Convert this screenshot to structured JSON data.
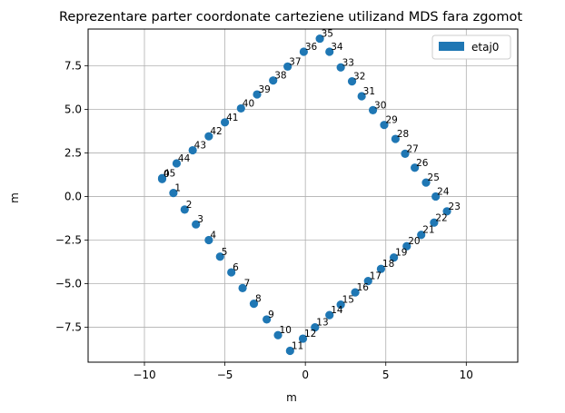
{
  "chart_data": {
    "type": "scatter",
    "title": "Reprezentare parter coordonate carteziene utilizand MDS fara zgomot",
    "xlabel": "m",
    "ylabel": "m",
    "xlim": [
      -13.5,
      13.2
    ],
    "ylim": [
      -9.5,
      9.6
    ],
    "xticks": [
      -10,
      -5,
      0,
      5,
      10
    ],
    "xtick_labels": [
      "−10",
      "−5",
      "0",
      "5",
      "10"
    ],
    "yticks": [
      -7.5,
      -5.0,
      -2.5,
      0.0,
      2.5,
      5.0,
      7.5
    ],
    "ytick_labels": [
      "−7.5",
      "−5.0",
      "−2.5",
      "0.0",
      "2.5",
      "5.0",
      "7.5"
    ],
    "grid": true,
    "legend": {
      "placement": "top-right",
      "entries": [
        "etaj0"
      ]
    },
    "series": [
      {
        "name": "etaj0",
        "color": "#1f77b4",
        "points": [
          {
            "x": -8.9,
            "y": 1.0,
            "label": "0"
          },
          {
            "x": -8.2,
            "y": 0.2,
            "label": "1"
          },
          {
            "x": -7.5,
            "y": -0.75,
            "label": "2"
          },
          {
            "x": -6.8,
            "y": -1.6,
            "label": "3"
          },
          {
            "x": -6.0,
            "y": -2.5,
            "label": "4"
          },
          {
            "x": -5.3,
            "y": -3.45,
            "label": "5"
          },
          {
            "x": -4.6,
            "y": -4.35,
            "label": "6"
          },
          {
            "x": -3.9,
            "y": -5.25,
            "label": "7"
          },
          {
            "x": -3.2,
            "y": -6.15,
            "label": "8"
          },
          {
            "x": -2.4,
            "y": -7.05,
            "label": "9"
          },
          {
            "x": -1.7,
            "y": -7.95,
            "label": "10"
          },
          {
            "x": -0.95,
            "y": -8.85,
            "label": "11"
          },
          {
            "x": -0.15,
            "y": -8.15,
            "label": "12"
          },
          {
            "x": 0.6,
            "y": -7.5,
            "label": "13"
          },
          {
            "x": 1.5,
            "y": -6.8,
            "label": "14"
          },
          {
            "x": 2.2,
            "y": -6.2,
            "label": "15"
          },
          {
            "x": 3.1,
            "y": -5.5,
            "label": "16"
          },
          {
            "x": 3.9,
            "y": -4.85,
            "label": "17"
          },
          {
            "x": 4.7,
            "y": -4.15,
            "label": "18"
          },
          {
            "x": 5.5,
            "y": -3.5,
            "label": "19"
          },
          {
            "x": 6.3,
            "y": -2.85,
            "label": "20"
          },
          {
            "x": 7.2,
            "y": -2.2,
            "label": "21"
          },
          {
            "x": 8.0,
            "y": -1.5,
            "label": "22"
          },
          {
            "x": 8.8,
            "y": -0.85,
            "label": "23"
          },
          {
            "x": 8.1,
            "y": 0.0,
            "label": "24"
          },
          {
            "x": 7.5,
            "y": 0.8,
            "label": "25"
          },
          {
            "x": 6.8,
            "y": 1.65,
            "label": "26"
          },
          {
            "x": 6.2,
            "y": 2.45,
            "label": "27"
          },
          {
            "x": 5.6,
            "y": 3.3,
            "label": "28"
          },
          {
            "x": 4.9,
            "y": 4.1,
            "label": "29"
          },
          {
            "x": 4.2,
            "y": 4.95,
            "label": "30"
          },
          {
            "x": 3.5,
            "y": 5.75,
            "label": "31"
          },
          {
            "x": 2.9,
            "y": 6.6,
            "label": "32"
          },
          {
            "x": 2.2,
            "y": 7.4,
            "label": "33"
          },
          {
            "x": 1.5,
            "y": 8.3,
            "label": "34"
          },
          {
            "x": 0.9,
            "y": 9.05,
            "label": "35"
          },
          {
            "x": -0.1,
            "y": 8.3,
            "label": "36"
          },
          {
            "x": -1.1,
            "y": 7.45,
            "label": "37"
          },
          {
            "x": -2.0,
            "y": 6.65,
            "label": "38"
          },
          {
            "x": -3.0,
            "y": 5.85,
            "label": "39"
          },
          {
            "x": -4.0,
            "y": 5.05,
            "label": "40"
          },
          {
            "x": -5.0,
            "y": 4.25,
            "label": "41"
          },
          {
            "x": -6.0,
            "y": 3.45,
            "label": "42"
          },
          {
            "x": -7.0,
            "y": 2.65,
            "label": "43"
          },
          {
            "x": -8.0,
            "y": 1.9,
            "label": "44"
          },
          {
            "x": -8.9,
            "y": 1.05,
            "label": "45"
          }
        ]
      }
    ]
  }
}
